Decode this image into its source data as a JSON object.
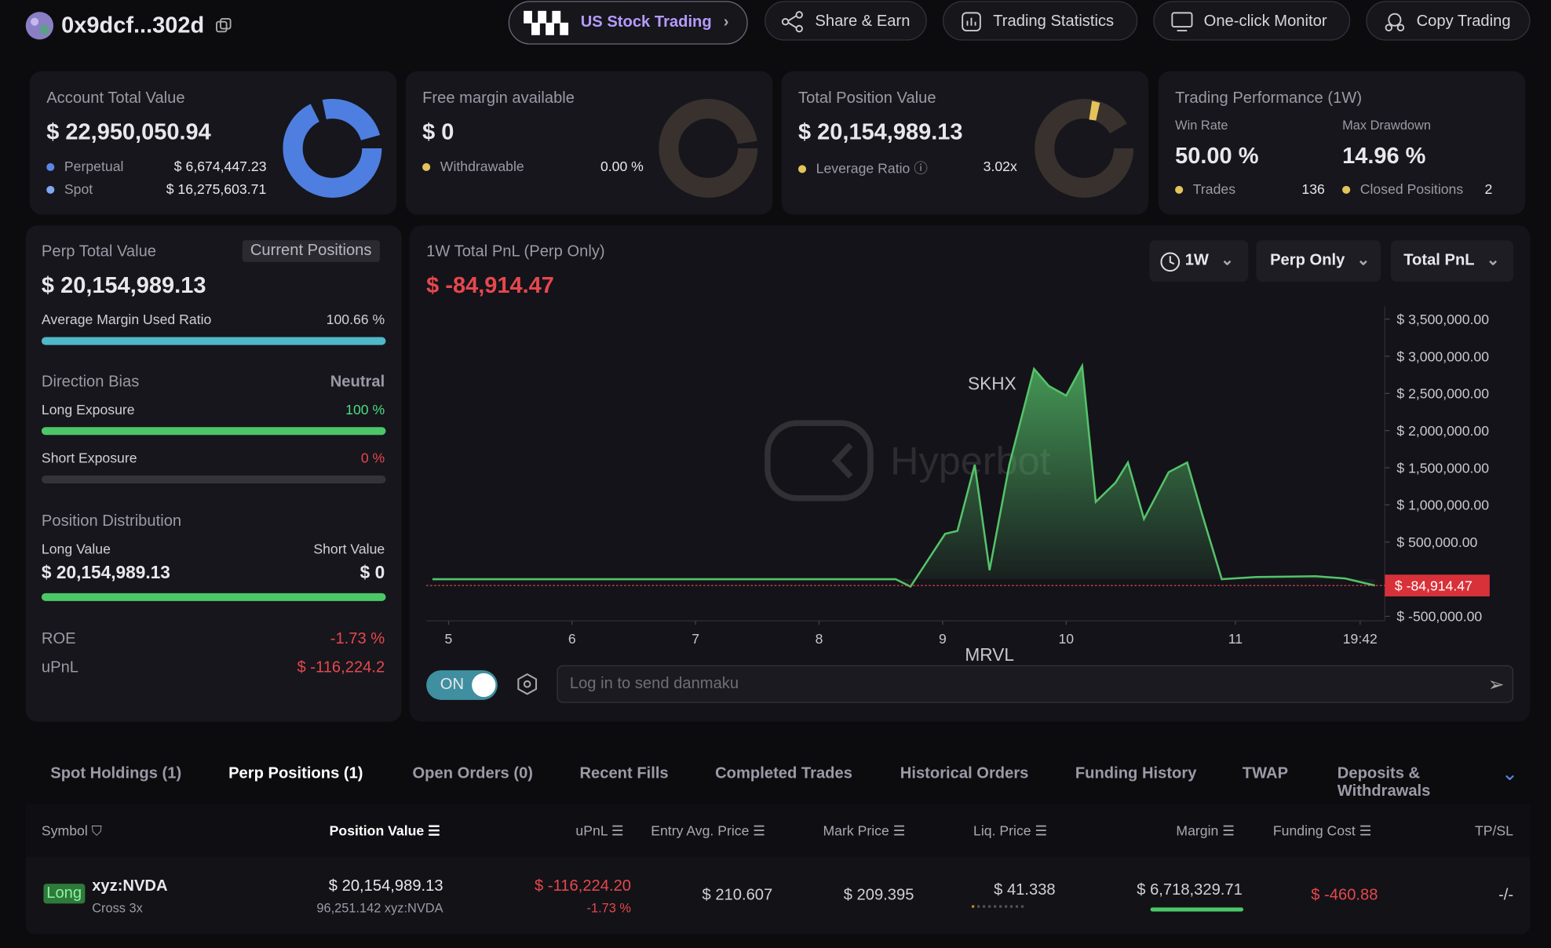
{
  "header": {
    "account": "0x9dcf...302d",
    "nav": [
      "US Stock Trading",
      "Share & Earn",
      "Trading Statistics",
      "One-click Monitor",
      "Copy Trading"
    ]
  },
  "summary": {
    "account_total": {
      "label": "Account Total Value",
      "value": "$ 22,950,050.94",
      "rows": [
        [
          "Perpetual",
          "$ 6,674,447.23"
        ],
        [
          "Spot",
          "$ 16,275,603.71"
        ]
      ]
    },
    "free_margin": {
      "label": "Free margin available",
      "value": "$ 0",
      "rows": [
        [
          "Withdrawable",
          "0.00 %"
        ]
      ]
    },
    "position_value": {
      "label": "Total Position Value",
      "value": "$ 20,154,989.13",
      "rows": [
        [
          "Leverage Ratio",
          "3.02x"
        ]
      ]
    },
    "performance": {
      "label": "Trading Performance (1W)",
      "stats": [
        [
          "Win Rate",
          "50.00 %"
        ],
        [
          "Max Drawdown",
          "14.96 %"
        ]
      ],
      "rows": [
        [
          "Trades",
          "136"
        ],
        [
          "Closed Positions",
          "2"
        ]
      ]
    }
  },
  "perp": {
    "label": "Perp Total Value",
    "button": "Current Positions",
    "value": "$ 20,154,989.13",
    "margin_label": "Average Margin Used Ratio",
    "margin_value": "100.66 %",
    "bias_label": "Direction Bias",
    "bias_value": "Neutral",
    "long_label": "Long Exposure",
    "long_value": "100 %",
    "short_label": "Short Exposure",
    "short_value": "0 %",
    "dist_label": "Position Distribution",
    "long_value_label": "Long Value",
    "short_value_label": "Short Value",
    "long_amount": "$ 20,154,989.13",
    "short_amount": "$ 0",
    "roe_label": "ROE",
    "roe": "-1.73 %",
    "upnl_label": "uPnL",
    "upnl": "$ -116,224.2"
  },
  "chart": {
    "type": "area",
    "title": "1W Total PnL (Perp Only)",
    "value": "$ -84,914.47",
    "controls": [
      "1W",
      "Perp Only",
      "Total PnL"
    ],
    "watermark": "Hyperbot",
    "x": [
      4.87,
      8.62,
      8.74,
      9.02,
      9.12,
      9.26,
      9.38,
      9.54,
      9.74,
      9.86,
      10.0,
      10.13,
      10.24,
      10.4,
      10.5,
      10.63,
      10.83,
      10.98,
      11.1,
      11.26,
      11.54,
      12.02,
      12.26,
      12.5
    ],
    "values": [
      0,
      0,
      -100000,
      610000,
      650000,
      1540000,
      120000,
      1540000,
      2830000,
      2600000,
      2470000,
      2870000,
      1040000,
      1300000,
      1570000,
      810000,
      1440000,
      1570000,
      880000,
      0,
      30000,
      40000,
      10000,
      -84914.47
    ],
    "color": "#55c36a",
    "xlim": [
      4.82,
      12.58
    ],
    "ylim": [
      -560000,
      3670000
    ],
    "xticks": [
      5,
      6,
      7,
      8,
      9,
      10,
      {
        "value": 11.37,
        "label": "11"
      },
      {
        "value": 12.38,
        "label": "19:42"
      }
    ],
    "yticks": [
      {
        "value": -500000,
        "label": "$ -500,000.00"
      },
      {
        "value": 500000,
        "label": "$ 500,000.00"
      },
      {
        "value": 1000000,
        "label": "$ 1,000,000.00"
      },
      {
        "value": 1500000,
        "label": "$ 1,500,000.00"
      },
      {
        "value": 2000000,
        "label": "$ 2,000,000.00"
      },
      {
        "value": 2500000,
        "label": "$ 2,500,000.00"
      },
      {
        "value": 3000000,
        "label": "$ 3,000,000.00"
      },
      {
        "value": 3500000,
        "label": "$ 3,500,000.00"
      }
    ],
    "annotations": [
      {
        "text": "SKHX",
        "x": 9.4,
        "y": 2550000
      },
      {
        "text": "MRVL",
        "x": 9.38,
        "y": -1100000
      }
    ],
    "current_value": -84914.47,
    "current_label": "$ -84,914.47",
    "toggle": "ON",
    "input_placeholder": "Log in to send danmaku"
  },
  "tabs": [
    "Spot Holdings (1)",
    "Perp Positions (1)",
    "Open Orders (0)",
    "Recent Fills",
    "Completed Trades",
    "Historical Orders",
    "Funding History",
    "TWAP",
    "Deposits & Withdrawals"
  ],
  "table": {
    "headers": [
      "Symbol",
      "Position Value",
      "uPnL",
      "Entry Avg. Price",
      "Mark Price",
      "Liq. Price",
      "Margin",
      "Funding Cost",
      "TP/SL"
    ],
    "rows": [
      {
        "side": "Long",
        "symbol": "xyz:NVDA",
        "mode": "Cross 3x",
        "position_value": "$ 20,154,989.13",
        "size": "96,251.142 xyz:NVDA",
        "upnl": "$ -116,224.20",
        "upnl_pct": "-1.73 %",
        "entry": "$ 210.607",
        "mark": "$ 209.395",
        "liq": "$ 41.338",
        "margin": "$ 6,718,329.71",
        "funding": "$ -460.88",
        "tpsl": "-/-"
      }
    ]
  }
}
